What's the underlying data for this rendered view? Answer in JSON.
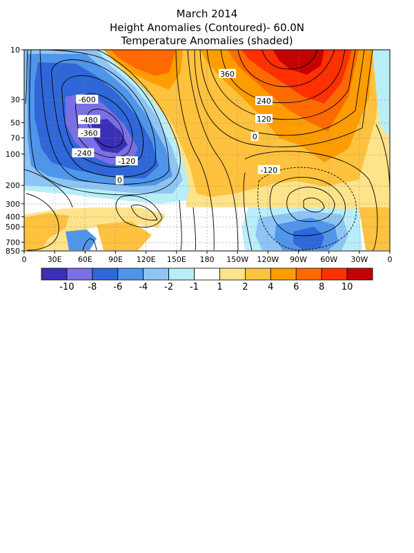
{
  "titles": {
    "line1": "March 2014",
    "line2": "Height Anomalies (Contoured)- 60.0N",
    "line3": "Temperature Anomalies (shaded)"
  },
  "chart_data": {
    "type": "heatmap",
    "x_ticks": [
      "0",
      "30E",
      "60E",
      "90E",
      "120E",
      "150E",
      "180",
      "150W",
      "120W",
      "90W",
      "60W",
      "30W",
      "0"
    ],
    "x_values": [
      0,
      30,
      60,
      90,
      120,
      150,
      180,
      210,
      240,
      270,
      300,
      330,
      360
    ],
    "y_ticks": [
      "10",
      "30",
      "50",
      "70",
      "100",
      "200",
      "300",
      "400",
      "500",
      "700",
      "850"
    ],
    "y_values": [
      10,
      30,
      50,
      70,
      100,
      200,
      300,
      400,
      500,
      700,
      850
    ],
    "y_scale": "log",
    "y_reversed": true,
    "grid": "dotted",
    "colorbar": {
      "labels": [
        "-10",
        "-8",
        "-6",
        "-4",
        "-2",
        "-1",
        "1",
        "2",
        "4",
        "6",
        "8",
        "10"
      ],
      "colors": [
        "#3a2fb5",
        "#7b6fe6",
        "#2f66d8",
        "#4f95ea",
        "#8ec5f5",
        "#b9eef9",
        "#ffffff",
        "#ffe38a",
        "#ffc23e",
        "#ff9d00",
        "#ff6a00",
        "#ff3000",
        "#c40000"
      ]
    },
    "contour_labels": [
      {
        "text": "-600",
        "lon": 62,
        "p": 30
      },
      {
        "text": "-480",
        "lon": 64,
        "p": 47
      },
      {
        "text": "-360",
        "lon": 64,
        "p": 63
      },
      {
        "text": "-240",
        "lon": 58,
        "p": 98
      },
      {
        "text": "-120",
        "lon": 101,
        "p": 117
      },
      {
        "text": "0",
        "lon": 94,
        "p": 178
      },
      {
        "text": "360",
        "lon": 200,
        "p": 17
      },
      {
        "text": "240",
        "lon": 236,
        "p": 31
      },
      {
        "text": "120",
        "lon": 236,
        "p": 46
      },
      {
        "text": "0",
        "lon": 227,
        "p": 68
      },
      {
        "text": "-120",
        "lon": 241,
        "p": 142
      }
    ],
    "temperature_anomaly_regions": [
      {
        "lon": 72,
        "p": 55,
        "value": -10
      },
      {
        "lon": 62,
        "p": 20,
        "value": -6
      },
      {
        "lon": 15,
        "p": 25,
        "value": -4
      },
      {
        "lon": 110,
        "p": 160,
        "value": -4
      },
      {
        "lon": 120,
        "p": 20,
        "value": 6
      },
      {
        "lon": 145,
        "p": 15,
        "value": 4
      },
      {
        "lon": 238,
        "p": 20,
        "value": 8
      },
      {
        "lon": 232,
        "p": 12,
        "value": 10
      },
      {
        "lon": 210,
        "p": 80,
        "value": 4
      },
      {
        "lon": 200,
        "p": 200,
        "value": 2
      },
      {
        "lon": 255,
        "p": 550,
        "value": -4
      },
      {
        "lon": 250,
        "p": 700,
        "value": -8
      },
      {
        "lon": 210,
        "p": 600,
        "value": -2
      },
      {
        "lon": 40,
        "p": 450,
        "value": 2
      },
      {
        "lon": 25,
        "p": 700,
        "value": 2
      },
      {
        "lon": 340,
        "p": 500,
        "value": 2
      }
    ]
  }
}
